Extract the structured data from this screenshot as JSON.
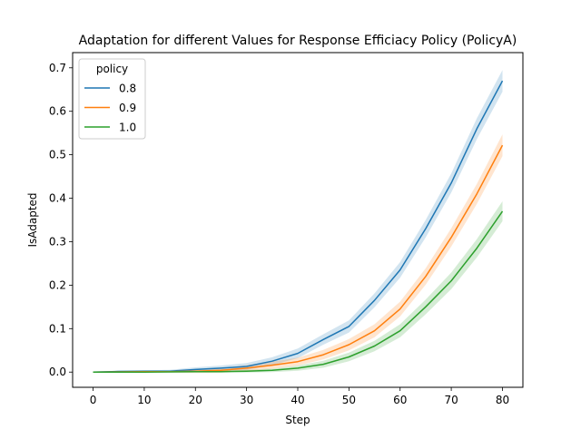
{
  "chart_data": {
    "type": "line",
    "title": "Adaptation for different Values for Response Efficiacy Policy (PolicyA)",
    "xlabel": "Step",
    "ylabel": "IsAdapted",
    "xlim": [
      -4,
      84
    ],
    "ylim": [
      -0.035,
      0.735
    ],
    "xticks": [
      0,
      10,
      20,
      30,
      40,
      50,
      60,
      70,
      80
    ],
    "yticks": [
      0.0,
      0.1,
      0.2,
      0.3,
      0.4,
      0.5,
      0.6,
      0.7
    ],
    "ytick_labels": [
      "0.0",
      "0.1",
      "0.2",
      "0.3",
      "0.4",
      "0.5",
      "0.6",
      "0.7"
    ],
    "grid": false,
    "legend": {
      "title": "policy",
      "placement": "top-left"
    },
    "x": [
      0,
      5,
      10,
      15,
      20,
      25,
      30,
      35,
      40,
      45,
      50,
      55,
      60,
      65,
      70,
      75,
      80
    ],
    "series": [
      {
        "name": "0.8",
        "color": "#1f77b4",
        "values": [
          0.0,
          0.0015,
          0.002,
          0.002,
          0.006,
          0.009,
          0.013,
          0.025,
          0.043,
          0.075,
          0.105,
          0.165,
          0.235,
          0.33,
          0.435,
          0.56,
          0.67
        ],
        "ci": [
          0.0,
          0.002,
          0.002,
          0.003,
          0.005,
          0.006,
          0.008,
          0.009,
          0.011,
          0.012,
          0.014,
          0.016,
          0.018,
          0.02,
          0.022,
          0.024,
          0.025
        ]
      },
      {
        "name": "0.9",
        "color": "#ff7f0e",
        "values": [
          0.0,
          0.0005,
          0.001,
          0.001,
          0.002,
          0.004,
          0.009,
          0.016,
          0.024,
          0.04,
          0.063,
          0.095,
          0.145,
          0.22,
          0.31,
          0.41,
          0.522
        ],
        "ci": [
          0.0,
          0.001,
          0.002,
          0.002,
          0.004,
          0.005,
          0.007,
          0.008,
          0.009,
          0.011,
          0.013,
          0.015,
          0.017,
          0.019,
          0.021,
          0.023,
          0.025
        ]
      },
      {
        "name": "1.0",
        "color": "#2ca02c",
        "values": [
          0.0,
          0.0,
          0.0,
          0.0005,
          0.0008,
          0.001,
          0.002,
          0.004,
          0.009,
          0.018,
          0.035,
          0.06,
          0.095,
          0.15,
          0.21,
          0.285,
          0.37
        ],
        "ci": [
          0.0,
          0.0,
          0.001,
          0.001,
          0.002,
          0.002,
          0.003,
          0.004,
          0.006,
          0.008,
          0.01,
          0.012,
          0.015,
          0.017,
          0.019,
          0.021,
          0.023
        ]
      }
    ]
  }
}
